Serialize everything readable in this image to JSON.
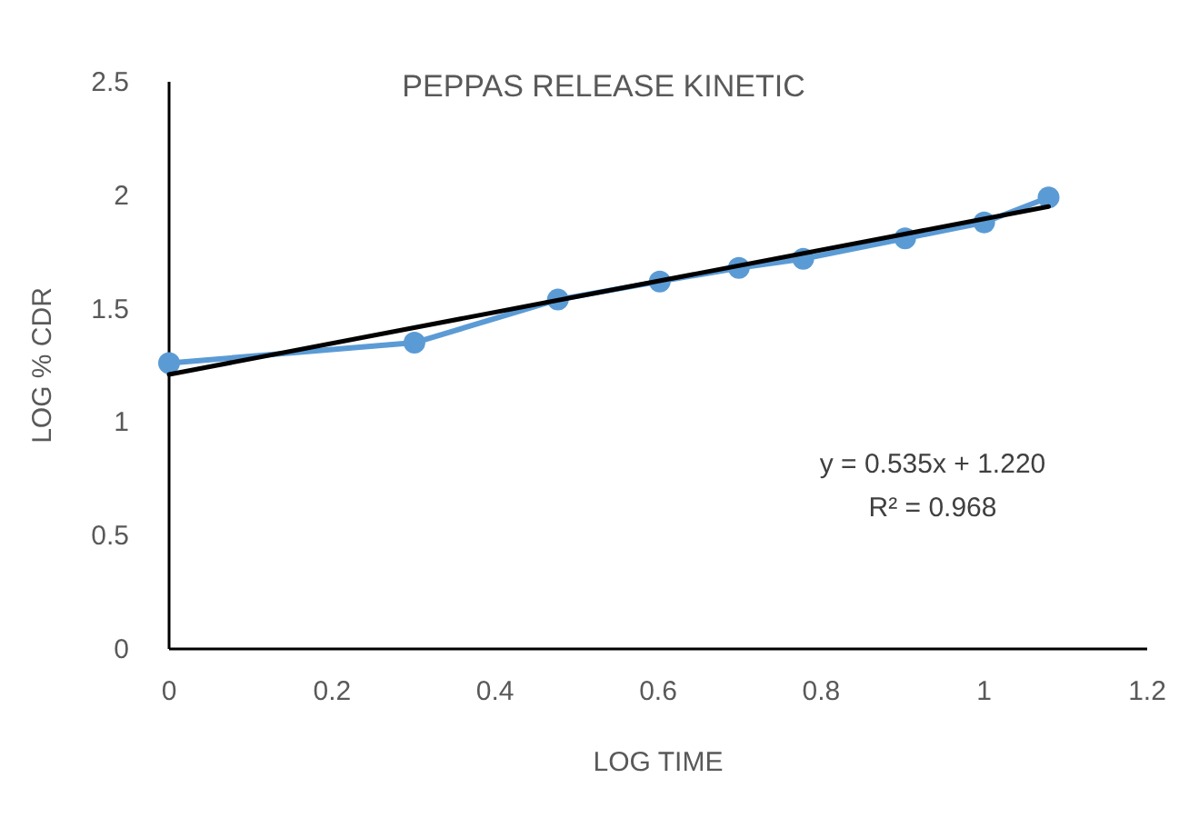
{
  "chart_data": {
    "type": "line",
    "title": "PEPPAS RELEASE KINETIC",
    "xlabel": "LOG TIME",
    "ylabel": "LOG % CDR",
    "xlim": [
      0,
      1.2
    ],
    "xticks": [
      {
        "value": 0,
        "label": "0"
      },
      0.2,
      0.4,
      0.6,
      0.8,
      {
        "value": 1,
        "label": "1"
      },
      1.2
    ],
    "ylim": [
      0,
      2.5
    ],
    "yticks": [
      {
        "value": 0,
        "label": "0"
      },
      0.5,
      {
        "value": 1,
        "label": "1"
      },
      1.5,
      {
        "value": 2,
        "label": "2"
      },
      2.5
    ],
    "grid": false,
    "marker": "circle",
    "line_style": "solid",
    "series": [
      {
        "color": "#5b9bd5",
        "x": [
          0,
          0.301,
          0.477,
          0.602,
          0.699,
          0.778,
          0.903,
          1,
          1.079
        ],
        "values": [
          1.26,
          1.35,
          1.54,
          1.62,
          1.68,
          1.72,
          1.81,
          1.88,
          1.99
        ]
      },
      {
        "type": "line",
        "marker": "none",
        "color": "#000000",
        "x": [
          0,
          1.079
        ],
        "values": [
          1.21,
          1.95
        ]
      }
    ],
    "annotations": [
      "y = 0.535x + 1.220",
      "R² = 0.968"
    ]
  }
}
